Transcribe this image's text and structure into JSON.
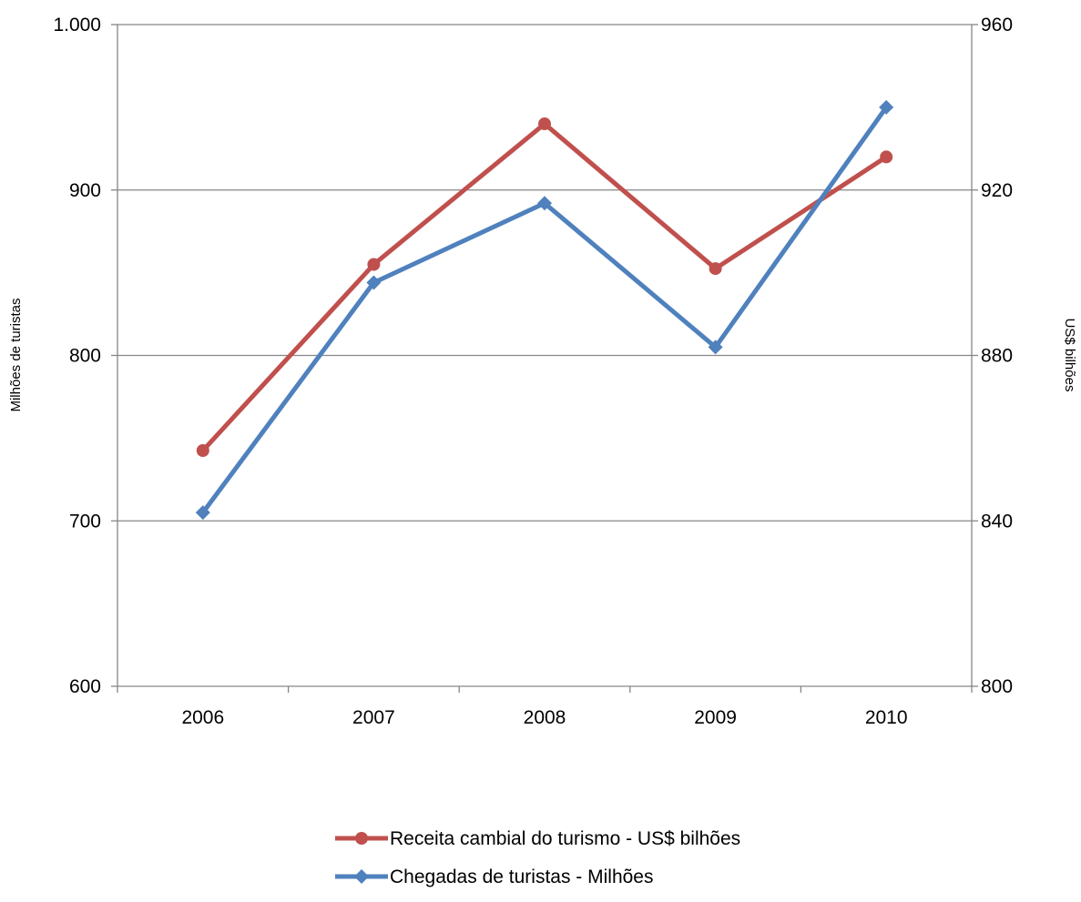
{
  "chart_data": {
    "type": "line",
    "title": "",
    "categories": [
      "2006",
      "2007",
      "2008",
      "2009",
      "2010"
    ],
    "y_left": {
      "label": "Milhões de turistas",
      "ylim": [
        600,
        1000
      ],
      "ticks": [
        600,
        700,
        800,
        900,
        1000
      ],
      "tick_labels": [
        "600",
        "700",
        "800",
        "900",
        "1.000"
      ]
    },
    "y_right": {
      "label": "US$ bilhões",
      "ylim": [
        800,
        960
      ],
      "ticks": [
        800,
        840,
        880,
        920,
        960
      ],
      "tick_labels": [
        "800",
        "840",
        "880",
        "920",
        "960"
      ]
    },
    "grid": true,
    "legend_position": "bottom",
    "series": [
      {
        "name": "Receita cambial do turismo - US$ bilhões",
        "axis": "right",
        "color": "#c0504d",
        "marker": "circle",
        "values": [
          857,
          902,
          936,
          901,
          928
        ]
      },
      {
        "name": "Chegadas de turistas - Milhões",
        "axis": "left",
        "color": "#4f81bd",
        "marker": "diamond",
        "values": [
          705,
          844,
          892,
          805,
          950
        ]
      }
    ]
  }
}
